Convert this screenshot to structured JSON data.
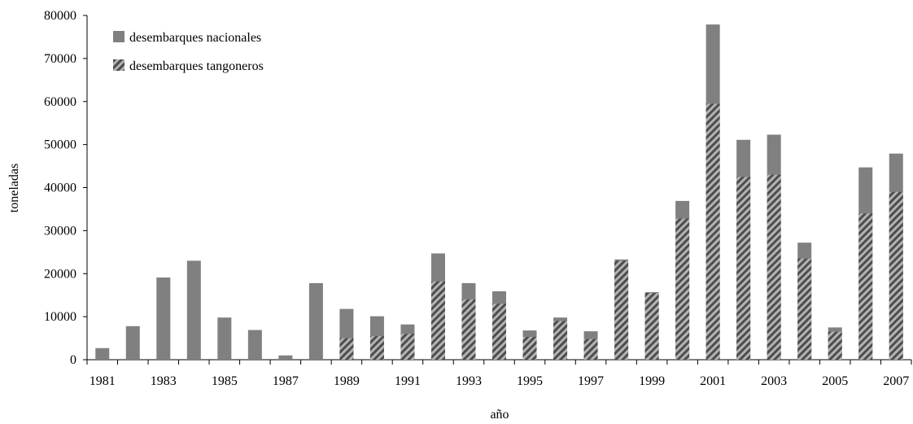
{
  "chart_data": {
    "type": "bar",
    "title": "",
    "xlabel": "año",
    "ylabel": "toneladas",
    "ylim": [
      0,
      80000
    ],
    "yticks": [
      0,
      10000,
      20000,
      30000,
      40000,
      50000,
      60000,
      70000,
      80000
    ],
    "categories": [
      "1981",
      "1982",
      "1983",
      "1984",
      "1985",
      "1986",
      "1987",
      "1988",
      "1989",
      "1990",
      "1991",
      "1992",
      "1993",
      "1994",
      "1995",
      "1996",
      "1997",
      "1998",
      "1999",
      "2000",
      "2001",
      "2002",
      "2003",
      "2004",
      "2005",
      "2006",
      "2007"
    ],
    "xtick_labels": [
      "1981",
      "1983",
      "1985",
      "1987",
      "1989",
      "1991",
      "1993",
      "1995",
      "1997",
      "1999",
      "2001",
      "2003",
      "2005",
      "2007"
    ],
    "grid": false,
    "legend_position": "top-left",
    "series": [
      {
        "name": "desembarques nacionales",
        "color": "#808080",
        "pattern": "solid",
        "values": [
          2700,
          7800,
          19100,
          23000,
          9800,
          6900,
          1000,
          17800,
          11800,
          10100,
          8200,
          24700,
          17800,
          15900,
          6800,
          9800,
          6600,
          23300,
          15700,
          36900,
          77900,
          51100,
          52300,
          27200,
          7500,
          44700,
          47900
        ]
      },
      {
        "name": "desembarques tangoneros",
        "color": "#4d4d4d",
        "pattern": "hatched",
        "values": [
          0,
          0,
          0,
          0,
          0,
          0,
          0,
          0,
          5000,
          5500,
          6000,
          18200,
          14000,
          13000,
          5300,
          9000,
          4800,
          23000,
          15500,
          32800,
          59500,
          42500,
          43000,
          23500,
          6500,
          34000,
          39000
        ]
      }
    ]
  }
}
